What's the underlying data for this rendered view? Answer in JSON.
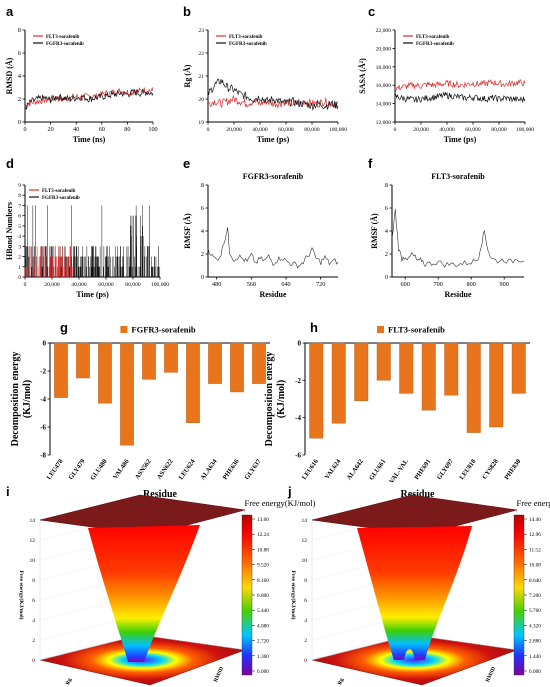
{
  "chart_data": [
    {
      "panel": "a",
      "type": "line",
      "xlabel": "Time (ns)",
      "ylabel": "RMSD (Å)",
      "xlim": [
        0,
        100
      ],
      "ylim": [
        0,
        8
      ],
      "xticks": [
        "0",
        "20",
        "40",
        "60",
        "80",
        "100"
      ],
      "yticks": [
        "0",
        "2",
        "4",
        "6",
        "8"
      ],
      "series": [
        {
          "name": "FLT3-sorafenib",
          "color": "#d62f2f",
          "x": [
            0,
            5,
            10,
            15,
            20,
            25,
            30,
            35,
            40,
            45,
            50,
            55,
            60,
            65,
            70,
            75,
            80,
            85,
            90,
            95,
            100
          ],
          "values": [
            1.4,
            1.7,
            1.8,
            1.9,
            2.0,
            2.1,
            2.0,
            2.1,
            2.2,
            2.1,
            2.3,
            2.2,
            2.4,
            2.5,
            2.6,
            2.7,
            2.6,
            2.6,
            2.7,
            2.8,
            2.7
          ]
        },
        {
          "name": "FGFR3-sorafenib",
          "color": "#111111",
          "x": [
            0,
            5,
            10,
            15,
            20,
            25,
            30,
            35,
            40,
            45,
            50,
            55,
            60,
            65,
            70,
            75,
            80,
            85,
            90,
            95,
            100
          ],
          "values": [
            1.2,
            1.8,
            2.0,
            2.1,
            1.9,
            2.2,
            2.1,
            2.0,
            2.1,
            2.2,
            2.0,
            2.1,
            2.2,
            2.3,
            2.4,
            2.5,
            2.4,
            2.6,
            2.5,
            2.6,
            2.5
          ]
        }
      ]
    },
    {
      "panel": "b",
      "type": "line",
      "xlabel": "Time (ps)",
      "ylabel": "Rg (Å)",
      "xlim": [
        0,
        100000
      ],
      "ylim": [
        19,
        23
      ],
      "xticks": [
        "0",
        "20,000",
        "40,000",
        "60,000",
        "80,000",
        "100,000"
      ],
      "yticks": [
        "19",
        "20",
        "21",
        "22",
        "23"
      ],
      "series": [
        {
          "name": "FLT3-sorafenib",
          "color": "#d62f2f",
          "x": [
            0,
            5000,
            10000,
            15000,
            20000,
            25000,
            30000,
            35000,
            40000,
            45000,
            50000,
            55000,
            60000,
            65000,
            70000,
            75000,
            80000,
            85000,
            90000,
            95000,
            100000
          ],
          "values": [
            19.8,
            19.9,
            19.8,
            19.9,
            20.0,
            19.9,
            19.8,
            19.9,
            19.8,
            19.9,
            19.8,
            19.8,
            19.9,
            19.8,
            19.8,
            19.9,
            19.8,
            19.8,
            19.9,
            19.8,
            19.8
          ]
        },
        {
          "name": "FGFR3-sorafenib",
          "color": "#111111",
          "x": [
            0,
            5000,
            10000,
            15000,
            20000,
            25000,
            30000,
            35000,
            40000,
            45000,
            50000,
            55000,
            60000,
            65000,
            70000,
            75000,
            80000,
            85000,
            90000,
            95000,
            100000
          ],
          "values": [
            20.2,
            20.6,
            20.8,
            20.5,
            20.4,
            20.2,
            20.1,
            20.0,
            20.1,
            19.9,
            20.0,
            19.9,
            19.8,
            19.9,
            19.8,
            19.8,
            19.7,
            19.8,
            19.7,
            19.8,
            19.7
          ]
        }
      ]
    },
    {
      "panel": "c",
      "type": "line",
      "xlabel": "Time (ps)",
      "ylabel": "SASA (Å²)",
      "xlim": [
        0,
        100000
      ],
      "ylim": [
        12000,
        22000
      ],
      "xticks": [
        "0",
        "20,000",
        "40,000",
        "60,000",
        "80,000",
        "100,000"
      ],
      "yticks": [
        "12,000",
        "14,000",
        "16,000",
        "18,000",
        "20,000",
        "22,000"
      ],
      "series": [
        {
          "name": "FLT3-sorafenib",
          "color": "#d62f2f",
          "x": [
            0,
            5000,
            10000,
            15000,
            20000,
            25000,
            30000,
            35000,
            40000,
            45000,
            50000,
            55000,
            60000,
            65000,
            70000,
            75000,
            80000,
            85000,
            90000,
            95000,
            100000
          ],
          "values": [
            15600,
            15800,
            15900,
            16000,
            15900,
            16100,
            16000,
            16100,
            16200,
            16100,
            16000,
            16100,
            16200,
            16100,
            16200,
            16300,
            16200,
            16100,
            16200,
            16300,
            16200
          ]
        },
        {
          "name": "FGFR3-sorafenib",
          "color": "#111111",
          "x": [
            0,
            5000,
            10000,
            15000,
            20000,
            25000,
            30000,
            35000,
            40000,
            45000,
            50000,
            55000,
            60000,
            65000,
            70000,
            75000,
            80000,
            85000,
            90000,
            95000,
            100000
          ],
          "values": [
            14800,
            14600,
            14500,
            14400,
            14500,
            14600,
            14700,
            14800,
            14900,
            14800,
            14700,
            14600,
            14700,
            14600,
            14500,
            14600,
            14500,
            14600,
            14500,
            14400,
            14500
          ]
        }
      ]
    },
    {
      "panel": "d",
      "type": "bar",
      "xlabel": "Time (ps)",
      "ylabel": "HBond Numbers",
      "xlim": [
        0,
        100000
      ],
      "ylim": [
        0,
        9
      ],
      "xticks": [
        "0",
        "20,000",
        "40,000",
        "60,000",
        "80,000",
        "100,000"
      ],
      "yticks": [
        "0",
        "1",
        "2",
        "3",
        "4",
        "5",
        "6",
        "7",
        "8",
        "9"
      ],
      "series": [
        {
          "name": "FLT3-sorafenib",
          "color": "#d62f2f",
          "x_range": [
            0,
            35000
          ],
          "levels": [
            1,
            2,
            3
          ]
        },
        {
          "name": "FGFR3-sorafenib",
          "color": "#111111",
          "x_range": [
            0,
            100000
          ],
          "levels": [
            1,
            2,
            3,
            4,
            5,
            6,
            7
          ]
        }
      ]
    },
    {
      "panel": "e",
      "type": "line",
      "title": "FGFR3-sorafenib",
      "xlabel": "Residue",
      "ylabel": "RMSF (Å)",
      "xlim": [
        460,
        760
      ],
      "ylim": [
        0,
        8
      ],
      "xticks": [
        "480",
        "560",
        "640",
        "720"
      ],
      "yticks": [
        "0",
        "2",
        "4",
        "6",
        "8"
      ],
      "series": [
        {
          "name": "FGFR3-sorafenib",
          "color": "#333333",
          "x": [
            460,
            470,
            480,
            490,
            500,
            505,
            510,
            520,
            530,
            540,
            550,
            560,
            570,
            580,
            590,
            600,
            610,
            620,
            630,
            640,
            650,
            660,
            670,
            680,
            690,
            700,
            710,
            720,
            730,
            740,
            750,
            760
          ],
          "values": [
            2.5,
            1.8,
            1.5,
            2.0,
            3.5,
            4.3,
            2.2,
            1.5,
            1.8,
            1.6,
            1.3,
            1.9,
            1.2,
            1.6,
            1.4,
            1.8,
            1.2,
            1.5,
            1.7,
            1.4,
            1.2,
            1.1,
            1.0,
            1.3,
            1.8,
            2.4,
            1.6,
            1.3,
            1.7,
            1.2,
            1.4,
            1.3
          ]
        }
      ]
    },
    {
      "panel": "f",
      "type": "line",
      "title": "FLT3-sorafenib",
      "xlabel": "Residue",
      "ylabel": "RMSF (Å)",
      "xlim": [
        560,
        960
      ],
      "ylim": [
        0,
        8
      ],
      "xticks": [
        "600",
        "700",
        "800",
        "900"
      ],
      "yticks": [
        "0",
        "2",
        "4",
        "6",
        "8"
      ],
      "series": [
        {
          "name": "FLT3-sorafenib",
          "color": "#333333",
          "x": [
            560,
            570,
            580,
            590,
            600,
            610,
            620,
            630,
            640,
            650,
            660,
            680,
            700,
            720,
            740,
            760,
            780,
            800,
            820,
            830,
            840,
            850,
            860,
            880,
            900,
            920,
            940,
            960
          ],
          "values": [
            3.2,
            5.8,
            2.5,
            1.6,
            1.8,
            1.5,
            2.0,
            1.7,
            1.3,
            1.5,
            1.1,
            1.2,
            1.3,
            1.1,
            1.1,
            1.1,
            1.2,
            1.3,
            1.5,
            2.8,
            4.0,
            2.5,
            1.6,
            1.4,
            1.5,
            1.3,
            1.6,
            1.4
          ]
        }
      ]
    },
    {
      "panel": "g",
      "type": "bar",
      "legend": "FGFR3-sorafenib",
      "xlabel": "Residue",
      "ylabel": "Decomposition energy (KJ/mol)",
      "ylim": [
        -8,
        0
      ],
      "yticks": [
        "0",
        "-2",
        "-4",
        "-6",
        "-8"
      ],
      "categories": [
        "LEU478",
        "GLY479",
        "GLU480",
        "VAL486",
        "ASN562",
        "ASN622",
        "LEU624",
        "ALA634",
        "PHE636",
        "GLY637"
      ],
      "values": [
        -3.9,
        -2.5,
        -4.3,
        -7.3,
        -2.6,
        -2.1,
        -5.7,
        -2.9,
        -3.5,
        -2.9
      ]
    },
    {
      "panel": "h",
      "type": "bar",
      "legend": "FLT3-sorafenib",
      "xlabel": "Residue",
      "ylabel": "Decomposition energy (KJ/mol)",
      "ylim": [
        -6,
        0
      ],
      "yticks": [
        "0",
        "-2",
        "-4",
        "-6"
      ],
      "categories": [
        "LEU616",
        "VAL624",
        "ALA642",
        "GLU661",
        "VAL-VAL",
        "PHE691",
        "GLY697",
        "LEU818",
        "CYS828",
        "PHE830"
      ],
      "values": [
        -5.1,
        -4.3,
        -3.1,
        -2.0,
        -2.7,
        -3.6,
        -2.8,
        -4.8,
        -4.5,
        -2.7
      ]
    },
    {
      "panel": "i",
      "type": "heatmap",
      "title": "Free energy(KJ/mol)",
      "zlim": [
        0,
        13
      ],
      "colorbar_ticks": [
        "13.60",
        "12.24",
        "10.88",
        "9.520",
        "8.160",
        "6.800",
        "5.440",
        "4.080",
        "2.720",
        "1.360",
        "0.000"
      ],
      "zticks": [
        "0",
        "2",
        "4",
        "6",
        "8",
        "10",
        "12",
        "14"
      ],
      "zlabel": "Free energy(KJ/mol)",
      "axis_text": [
        "RMSD",
        "Rg"
      ]
    },
    {
      "panel": "j",
      "type": "heatmap",
      "title": "Free energy(KJ/mol)",
      "zlim": [
        0,
        14
      ],
      "colorbar_ticks": [
        "14.40",
        "12.96",
        "11.52",
        "10.08",
        "8.640",
        "7.200",
        "5.760",
        "4.320",
        "2.880",
        "1.440",
        "0.000"
      ],
      "zticks": [
        "0",
        "2",
        "4",
        "6",
        "8",
        "10",
        "12",
        "14"
      ],
      "zlabel": "Free energy(KJ/mol)",
      "axis_text": [
        "RMSD",
        "Rg"
      ]
    }
  ],
  "panel_letters": [
    "a",
    "b",
    "c",
    "d",
    "e",
    "f",
    "g",
    "h",
    "i",
    "j"
  ]
}
